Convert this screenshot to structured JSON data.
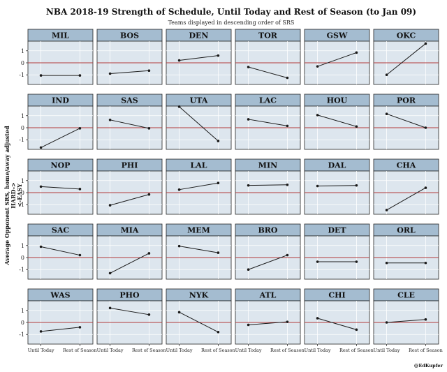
{
  "chart_data": {
    "type": "line",
    "title": "NBA 2018-19 Strength of Schedule, Until Today and Rest of Season (to Jan 09)",
    "subtitle": "Teams displayed in descending order of SRS",
    "ylabel_lines": [
      "Average Opponent SRS, home/away adjusted",
      "HARD->",
      "<-EASY"
    ],
    "credit": "@EdKupfer",
    "categories": [
      "Until Today",
      "Rest of Season"
    ],
    "ylim": [
      -1.8,
      1.8
    ],
    "yticks": [
      1,
      0,
      -1
    ],
    "ytick_labels": [
      "1",
      "0",
      "-1"
    ],
    "reference_line": 0,
    "colors": {
      "strip": "#a4bcd0",
      "panel": "#dde6ee",
      "grid": "#ffffff",
      "zero_line": "#b23a3a",
      "series": "#1a1a1a",
      "border": "#222222"
    },
    "series": [
      {
        "name": "MIL",
        "values": [
          -1.05,
          -1.05
        ]
      },
      {
        "name": "BOS",
        "values": [
          -0.9,
          -0.65
        ]
      },
      {
        "name": "DEN",
        "values": [
          0.2,
          0.6
        ]
      },
      {
        "name": "TOR",
        "values": [
          -0.35,
          -1.25
        ]
      },
      {
        "name": "GSW",
        "values": [
          -0.3,
          0.85
        ]
      },
      {
        "name": "OKC",
        "values": [
          -1.0,
          1.6
        ]
      },
      {
        "name": "IND",
        "values": [
          -1.65,
          -0.05
        ]
      },
      {
        "name": "SAS",
        "values": [
          0.65,
          -0.05
        ]
      },
      {
        "name": "UTA",
        "values": [
          1.75,
          -1.1
        ]
      },
      {
        "name": "LAC",
        "values": [
          0.7,
          0.15
        ]
      },
      {
        "name": "HOU",
        "values": [
          1.05,
          0.1
        ]
      },
      {
        "name": "POR",
        "values": [
          1.15,
          0.0
        ]
      },
      {
        "name": "NOP",
        "values": [
          0.5,
          0.3
        ]
      },
      {
        "name": "PHI",
        "values": [
          -1.05,
          -0.15
        ]
      },
      {
        "name": "LAL",
        "values": [
          0.25,
          0.8
        ]
      },
      {
        "name": "MIN",
        "values": [
          0.6,
          0.65
        ]
      },
      {
        "name": "DAL",
        "values": [
          0.55,
          0.6
        ]
      },
      {
        "name": "CHA",
        "values": [
          -1.45,
          0.4
        ]
      },
      {
        "name": "SAC",
        "values": [
          0.9,
          0.2
        ]
      },
      {
        "name": "MIA",
        "values": [
          -1.3,
          0.35
        ]
      },
      {
        "name": "MEM",
        "values": [
          0.95,
          0.4
        ]
      },
      {
        "name": "BRO",
        "values": [
          -1.0,
          0.2
        ]
      },
      {
        "name": "DET",
        "values": [
          -0.35,
          -0.35
        ]
      },
      {
        "name": "ORL",
        "values": [
          -0.45,
          -0.45
        ]
      },
      {
        "name": "WAS",
        "values": [
          -0.75,
          -0.4
        ]
      },
      {
        "name": "PHO",
        "values": [
          1.2,
          0.65
        ]
      },
      {
        "name": "NYK",
        "values": [
          0.85,
          -0.8
        ]
      },
      {
        "name": "ATL",
        "values": [
          -0.2,
          0.05
        ]
      },
      {
        "name": "CHI",
        "values": [
          0.35,
          -0.6
        ]
      },
      {
        "name": "CLE",
        "values": [
          0.0,
          0.25
        ]
      }
    ]
  }
}
